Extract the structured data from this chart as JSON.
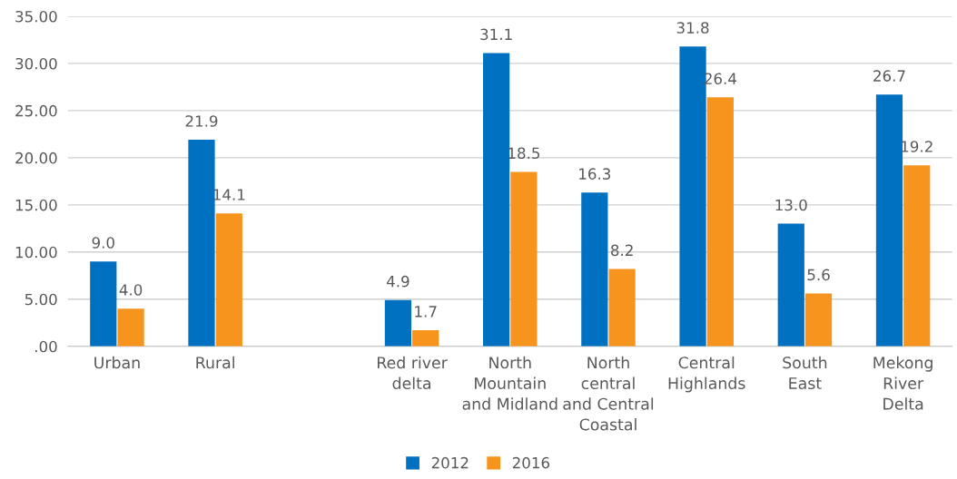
{
  "chart_data": {
    "type": "bar",
    "categories": [
      "Urban",
      "Rural",
      null,
      "Red river\ndelta",
      "North\nMountain\nand Midland",
      "North\ncentral\nand Central\nCoastal",
      "Central\nHighlands",
      "South\nEast",
      "Mekong\nRiver\nDelta"
    ],
    "series": [
      {
        "name": "2012",
        "color": "#0070c0",
        "values": [
          9.0,
          21.9,
          null,
          4.9,
          31.1,
          16.3,
          31.8,
          13.0,
          26.7
        ],
        "value_labels": [
          "9.0",
          "21.9",
          null,
          "4.9",
          "31.1",
          "16.3",
          "31.8",
          "13.0",
          "26.7"
        ]
      },
      {
        "name": "2016",
        "color": "#f7941d",
        "values": [
          4.0,
          14.1,
          null,
          1.7,
          18.5,
          8.2,
          26.4,
          5.6,
          19.2
        ],
        "value_labels": [
          "4.0",
          "14.1",
          null,
          "1.7",
          "18.5",
          "8.2",
          "26.4",
          "5.6",
          "19.2"
        ]
      }
    ],
    "ylim": [
      0,
      35
    ],
    "yticks": [
      {
        "value": 0,
        "label": ".00"
      },
      {
        "value": 5,
        "label": "5.00"
      },
      {
        "value": 10,
        "label": "10.00"
      },
      {
        "value": 15,
        "label": "15.00"
      },
      {
        "value": 20,
        "label": "20.00"
      },
      {
        "value": 25,
        "label": "25.00"
      },
      {
        "value": 30,
        "label": "30.00"
      },
      {
        "value": 35,
        "label": "35.00"
      }
    ],
    "grid": "y",
    "legend": "bottom"
  }
}
